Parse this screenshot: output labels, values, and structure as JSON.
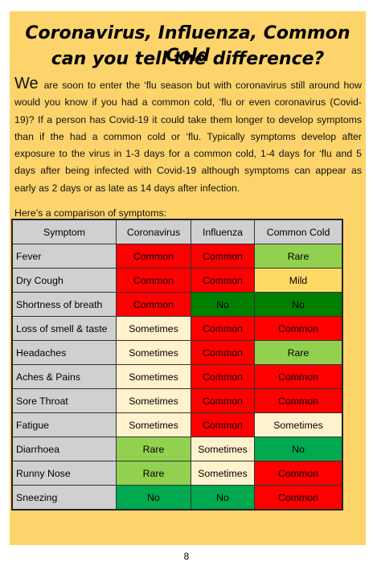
{
  "title_line1": "Coronavirus, Influenza, Common Cold",
  "title_line2": "can you tell the difference?",
  "intro_dropcap": "We",
  "intro_text": "are soon to enter the ‘flu season but with coronavirus still around how would you know if you had a common cold, ‘flu or even coronavirus (Covid-19)?  If a person has Covid-19 it could take them longer to develop symptoms than if the had a common cold or ‘flu. Typically symptoms develop after exposure to the virus in 1-3 days for a common cold, 1-4 days for ‘flu and 5 days after being infected with Covid-19 although symptoms can appear as early as 2 days or as late as 14 days after infection.",
  "comparison_label": "Here’s a comparison of symptoms:",
  "table": {
    "headers": [
      "Symptom",
      "Coronavirus",
      "Influenza",
      "Common Cold"
    ],
    "rows": [
      {
        "symptom": "Fever",
        "values": [
          "Common",
          "Common",
          "Rare"
        ]
      },
      {
        "symptom": "Dry Cough",
        "values": [
          "Common",
          "Common",
          "Mild"
        ]
      },
      {
        "symptom": "Shortness of breath",
        "values": [
          "Common",
          "No",
          "No"
        ]
      },
      {
        "symptom": "Loss of smell & taste",
        "values": [
          "Sometimes",
          "Common",
          "Common"
        ]
      },
      {
        "symptom": "Headaches",
        "values": [
          "Sometimes",
          "Common",
          "Rare"
        ]
      },
      {
        "symptom": "Aches & Pains",
        "values": [
          "Sometimes",
          "Common",
          "Common"
        ]
      },
      {
        "symptom": "Sore Throat",
        "values": [
          "Sometimes",
          "Common",
          "Common"
        ]
      },
      {
        "symptom": "Fatigue",
        "values": [
          "Sometimes",
          "Common",
          "Sometimes"
        ]
      },
      {
        "symptom": "Diarrhoea",
        "values": [
          "Rare",
          "Sometimes",
          "No"
        ]
      },
      {
        "symptom": "Runny Nose",
        "values": [
          "Rare",
          "Sometimes",
          "Common"
        ]
      },
      {
        "symptom": "Sneezing",
        "values": [
          "No",
          "No",
          "Common"
        ]
      }
    ]
  },
  "colors": {
    "common": "#ff0000",
    "rare": "#92d050",
    "mild": "#ffd966",
    "no": "#00a84f",
    "no_dark": "#008000",
    "sometimes": "#fff2cc",
    "panel": "#fcd46b"
  },
  "page_number": "8"
}
